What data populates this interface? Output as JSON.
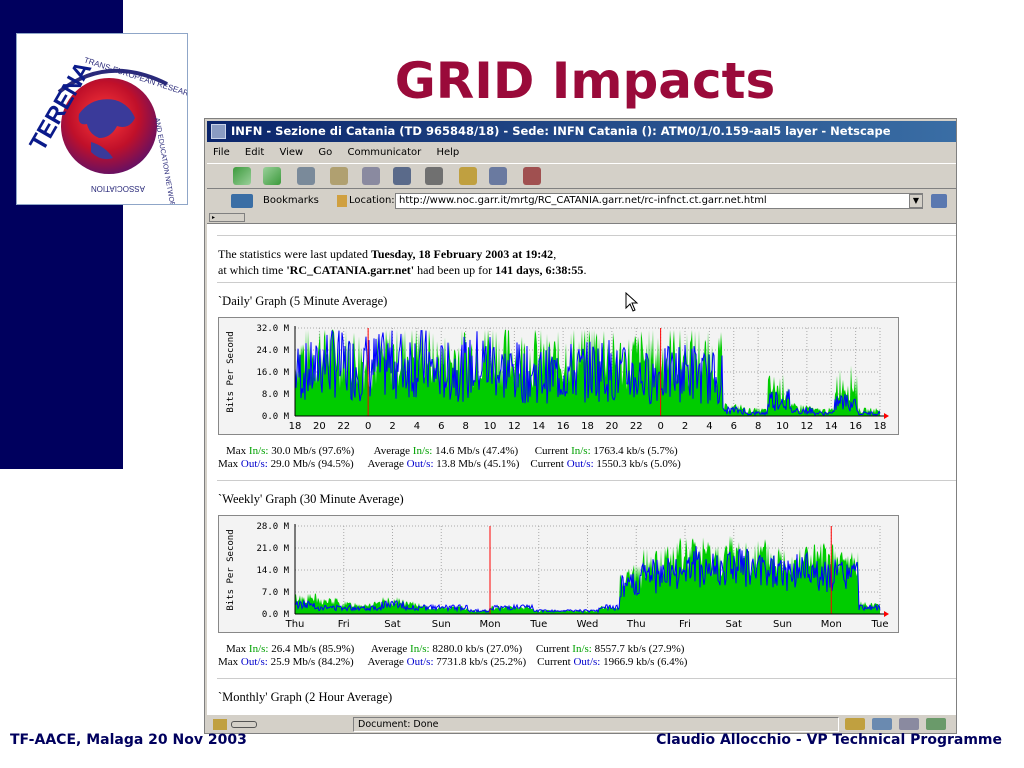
{
  "slide": {
    "title": "GRID Impacts",
    "footer_left": "TF-AACE, Malaga 20 Nov 2003",
    "footer_right": "Claudio Allocchio - VP Technical Programme"
  },
  "logo": {
    "name": "TERENA",
    "ring_text": "TRANS-EUROPEAN RESEARCH AND EDUCATION NETWORKING ASSOCIATION"
  },
  "browser": {
    "title": "INFN - Sezione di Catania (TD 965848/18) - Sede: INFN Catania (): ATM0/1/0.159-aal5 layer - Netscape",
    "menu": [
      "File",
      "Edit",
      "View",
      "Go",
      "Communicator",
      "Help"
    ],
    "bookmarks_label": "Bookmarks",
    "location_label": "Location:",
    "url": "http://www.noc.garr.it/mrtg/RC_CATANIA.garr.net/rc-infnct.ct.garr.net.html",
    "status": "Document: Done",
    "icons": [
      "back-icon",
      "forward-icon",
      "reload-icon",
      "home-icon",
      "search-icon",
      "netscape-icon",
      "print-icon",
      "security-icon",
      "shop-icon",
      "stop-icon"
    ]
  },
  "page": {
    "updated_line": {
      "prefix": "The statistics were last updated ",
      "date": "Tuesday, 18 February 2003 at 19:42",
      "suffix": ","
    },
    "uptime_line": {
      "prefix": "at which time ",
      "host": "'RC_CATANIA.garr.net'",
      "middle": " had been up for ",
      "uptime": "141 days, 6:38:55",
      "suffix": "."
    },
    "daily": {
      "title": "`Daily' Graph (5 Minute Average)",
      "stats": {
        "max_in": "30.0 Mb/s (97.6%)",
        "avg_in": "14.6 Mb/s (47.4%)",
        "cur_in": "1763.4 kb/s (5.7%)",
        "max_out": "29.0 Mb/s (94.5%)",
        "avg_out": "13.8 Mb/s (45.1%)",
        "cur_out": "1550.3 kb/s (5.0%)"
      }
    },
    "weekly": {
      "title": "`Weekly' Graph (30 Minute Average)",
      "stats": {
        "max_in": "26.4 Mb/s (85.9%)",
        "avg_in": "8280.0 kb/s (27.0%)",
        "cur_in": "8557.7 kb/s (27.9%)",
        "max_out": "25.9 Mb/s (84.2%)",
        "avg_out": "7731.8 kb/s (25.2%)",
        "cur_out": "1966.9 kb/s (6.4%)"
      }
    },
    "monthly": {
      "title": "`Monthly' Graph (2 Hour Average)"
    },
    "labels": {
      "max": "Max",
      "average": "Average",
      "current": "Current",
      "in": "In/s:",
      "out": "Out/s:"
    }
  },
  "chart_data": [
    {
      "type": "area",
      "ylabel": "Bits Per Second",
      "y_ticks": [
        "32.0 M",
        "24.0 M",
        "16.0 M",
        "8.0 M",
        "0.0 M"
      ],
      "y_values": [
        32,
        24,
        16,
        8,
        0
      ],
      "x_ticks": [
        "18",
        "20",
        "22",
        "0",
        "2",
        "4",
        "6",
        "8",
        "10",
        "12",
        "14",
        "16",
        "18",
        "20",
        "22",
        "0",
        "2",
        "4",
        "6",
        "8",
        "10",
        "12",
        "14",
        "16",
        "18"
      ],
      "ylim": [
        0,
        32
      ],
      "colors": {
        "in": "#00cc00",
        "out": "#0000ff",
        "divider": "#ff0000",
        "grid": "#aaaaaa"
      },
      "series": [
        {
          "name": "In/s",
          "kind": "area",
          "segments_avg": [
            22,
            24,
            22,
            20,
            22,
            24,
            20,
            22,
            24,
            22,
            21,
            20,
            22,
            24,
            20,
            21,
            22,
            22,
            20,
            3,
            2,
            10,
            3,
            2,
            12,
            2
          ]
        },
        {
          "name": "Out/s",
          "kind": "line",
          "segments_avg": [
            16,
            20,
            18,
            18,
            19,
            20,
            16,
            17,
            19,
            16,
            15,
            15,
            16,
            17,
            15,
            14,
            15,
            16,
            14,
            2,
            1,
            6,
            2,
            1,
            5,
            1
          ]
        }
      ]
    },
    {
      "type": "area",
      "ylabel": "Bits Per Second",
      "y_ticks": [
        "28.0 M",
        "21.0 M",
        "14.0 M",
        "7.0 M",
        "0.0 M"
      ],
      "y_values": [
        28,
        21,
        14,
        7,
        0
      ],
      "x_ticks": [
        "Thu",
        "Fri",
        "Sat",
        "Sun",
        "Mon",
        "Tue",
        "Wed",
        "Thu",
        "Fri",
        "Sat",
        "Sun",
        "Mon",
        "Tue"
      ],
      "ylim": [
        0,
        28
      ],
      "colors": {
        "in": "#00cc00",
        "out": "#0000ff",
        "divider": "#ff0000",
        "grid": "#aaaaaa"
      },
      "series": [
        {
          "name": "In/s",
          "kind": "area",
          "segments_avg": [
            5,
            4,
            3,
            3,
            4,
            3,
            2,
            2,
            1,
            2,
            2,
            1,
            1,
            1,
            2,
            12,
            16,
            18,
            19,
            18,
            19,
            18,
            17,
            18,
            17,
            16,
            3
          ]
        },
        {
          "name": "Out/s",
          "kind": "line",
          "segments_avg": [
            3,
            2,
            2,
            2,
            3,
            2,
            2,
            2,
            1,
            2,
            2,
            1,
            1,
            1,
            2,
            9,
            12,
            13,
            15,
            14,
            15,
            13,
            13,
            14,
            12,
            12,
            2
          ]
        }
      ]
    }
  ]
}
